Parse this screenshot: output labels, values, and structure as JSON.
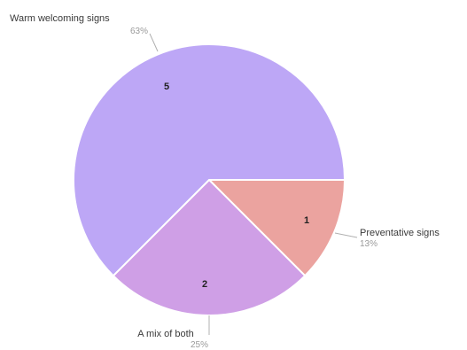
{
  "chart_data": {
    "type": "pie",
    "slices": [
      {
        "label": "Warm welcoming signs",
        "value": 5,
        "percent_label": "63%",
        "color": "#bda7f6"
      },
      {
        "label": "Preventative signs",
        "value": 1,
        "percent_label": "13%",
        "color": "#eba39f"
      },
      {
        "label": "A mix of both",
        "value": 2,
        "percent_label": "25%",
        "color": "#cf9fe6"
      }
    ]
  }
}
